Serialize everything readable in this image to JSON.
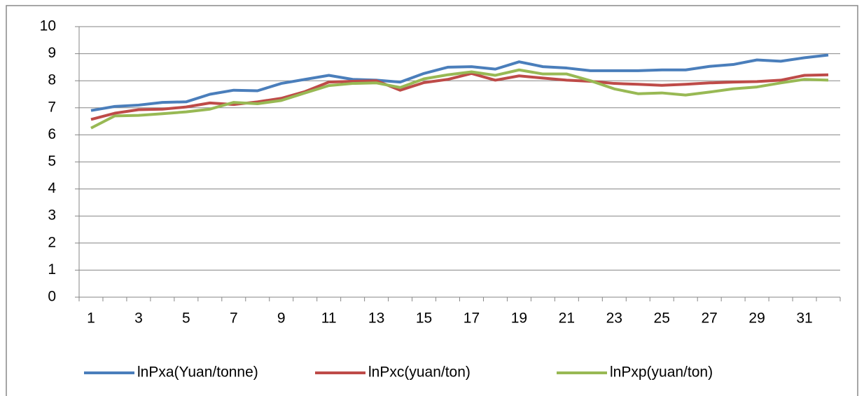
{
  "chart_data": {
    "type": "line",
    "categories": [
      "1",
      null,
      "3",
      null,
      "5",
      null,
      "7",
      null,
      "9",
      null,
      "11",
      null,
      "13",
      null,
      "15",
      null,
      "17",
      null,
      "19",
      null,
      "21",
      null,
      "23",
      null,
      "25",
      null,
      "27",
      null,
      "29",
      null,
      "31",
      null
    ],
    "series": [
      {
        "name": "lnPxa(Yuan/tonne)",
        "color": "#4a7ebb",
        "values": [
          6.9,
          7.05,
          7.1,
          7.2,
          7.22,
          7.5,
          7.65,
          7.63,
          7.9,
          8.05,
          8.2,
          8.05,
          8.02,
          7.95,
          8.27,
          8.5,
          8.52,
          8.43,
          8.7,
          8.52,
          8.47,
          8.37,
          8.37,
          8.37,
          8.4,
          8.4,
          8.53,
          8.6,
          8.77,
          8.72,
          8.85,
          8.95
        ]
      },
      {
        "name": "lnPxc(yuan/ton)",
        "color": "#be4b48",
        "values": [
          6.57,
          6.8,
          6.93,
          6.95,
          7.03,
          7.18,
          7.12,
          7.22,
          7.35,
          7.6,
          7.95,
          7.98,
          8.0,
          7.65,
          7.93,
          8.05,
          8.27,
          8.02,
          8.18,
          8.1,
          8.02,
          7.98,
          7.9,
          7.87,
          7.83,
          7.87,
          7.92,
          7.95,
          7.97,
          8.02,
          8.2,
          8.22
        ]
      },
      {
        "name": "lnPxp(yuan/ton)",
        "color": "#98b954",
        "values": [
          6.25,
          6.7,
          6.72,
          6.78,
          6.85,
          6.95,
          7.2,
          7.15,
          7.27,
          7.55,
          7.82,
          7.9,
          7.92,
          7.75,
          8.07,
          8.22,
          8.33,
          8.2,
          8.4,
          8.25,
          8.25,
          8.0,
          7.7,
          7.52,
          7.55,
          7.47,
          7.58,
          7.7,
          7.77,
          7.92,
          8.05,
          8.02
        ]
      }
    ],
    "ylim": [
      0,
      10
    ],
    "yticks": [
      0,
      1,
      2,
      3,
      4,
      5,
      6,
      7,
      8,
      9,
      10
    ],
    "grid": true,
    "legend": "bottom"
  }
}
